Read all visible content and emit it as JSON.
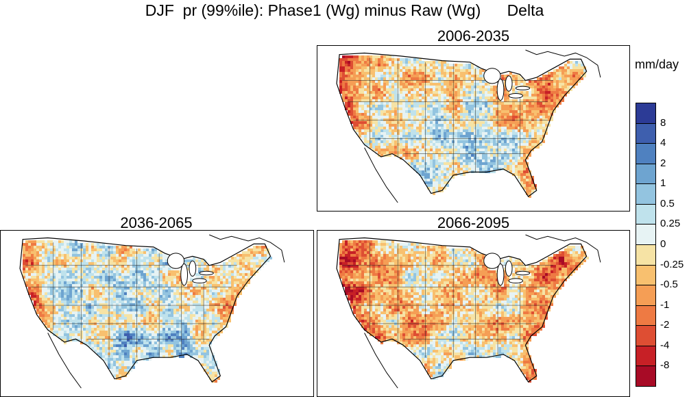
{
  "title": "DJF  pr (99%ile): Phase1 (Wg) minus Raw (Wg)      Delta",
  "panels": [
    {
      "label": "2006-2035",
      "key": "p1"
    },
    {
      "label": "2036-2065",
      "key": "p2"
    },
    {
      "label": "2066-2095",
      "key": "p3"
    }
  ],
  "colorbar": {
    "units": "mm/day",
    "colors": [
      "#2c3b96",
      "#3e5fae",
      "#4f81c0",
      "#6ea4d0",
      "#93c4e0",
      "#bfe2ec",
      "#e7f3f4",
      "#f6e3a5",
      "#f8c06f",
      "#f59e55",
      "#ee7a43",
      "#de4e33",
      "#c72026",
      "#a80b26"
    ],
    "tick_labels": [
      "8",
      "4",
      "2",
      "1",
      "0.5",
      "0.25",
      "0",
      "-0.25",
      "-0.5",
      "-1",
      "-2",
      "-4",
      "-8"
    ]
  },
  "panel_fields": {
    "p1": {
      "bias": -0.25,
      "west_red": 0.6,
      "south_blue": 0.55
    },
    "p2": {
      "bias": 0.15,
      "west_red": 0.8,
      "south_blue": 0.35
    },
    "p3": {
      "bias": -0.55,
      "west_red": 1.0,
      "south_blue": 0.25
    }
  }
}
